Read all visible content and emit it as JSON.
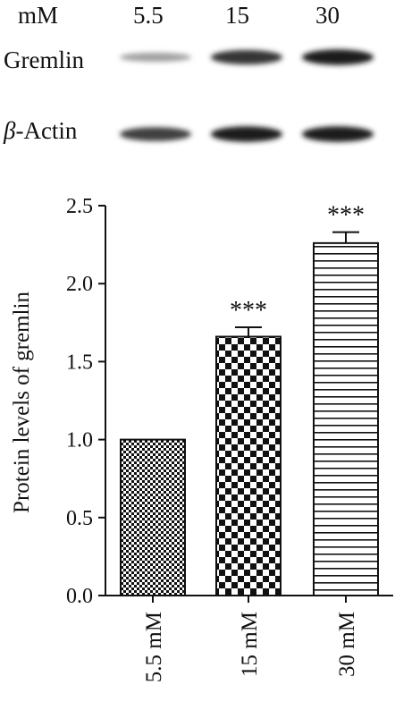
{
  "blot": {
    "concentration_header": "mM",
    "lanes": [
      "5.5",
      "15",
      "30"
    ],
    "rows": [
      {
        "greek": "",
        "label": "Gremlin",
        "intensity": [
          0.35,
          0.85,
          0.95
        ]
      },
      {
        "greek": "β",
        "label": "-Actin",
        "intensity": [
          0.8,
          0.95,
          0.95
        ]
      }
    ]
  },
  "chart_data": {
    "type": "bar",
    "categories": [
      "5.5 mM",
      "15 mM",
      "30 mM"
    ],
    "values": [
      1.0,
      1.66,
      2.26
    ],
    "errors": [
      0.0,
      0.06,
      0.07
    ],
    "significance": [
      "",
      "***",
      "***"
    ],
    "patterns": [
      "fine-checker",
      "checker",
      "horizontal-lines"
    ],
    "ylabel": "Protein levels of gremlin",
    "xlabel": "",
    "ylim": [
      0,
      2.5
    ],
    "yticks": [
      "0.0",
      "0.5",
      "1.0",
      "1.5",
      "2.0",
      "2.5"
    ],
    "grid": false
  }
}
